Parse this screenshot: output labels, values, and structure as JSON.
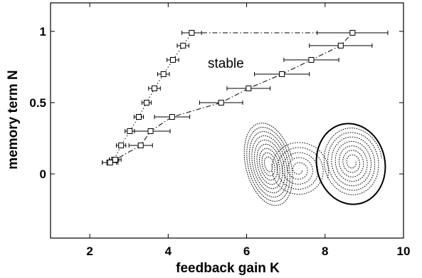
{
  "chart_data": {
    "type": "scatter",
    "xlabel": "feedback gain K",
    "ylabel": "memory term N",
    "xlim": [
      1,
      10
    ],
    "ylim": [
      -0.45,
      1.2
    ],
    "xticks": [
      2,
      4,
      6,
      8,
      10
    ],
    "xtick_labels": [
      "2",
      "4",
      "6",
      "8",
      "10"
    ],
    "yticks": [
      0,
      0.5,
      1
    ],
    "ytick_labels": [
      "0",
      "0.5",
      "1"
    ],
    "grid": false,
    "legend": "none",
    "annotation": "stable",
    "series": [
      {
        "line_style": "dotted",
        "x": [
          2.5,
          2.62,
          2.8,
          3.02,
          3.25,
          3.45,
          3.65,
          3.88,
          4.12,
          4.38,
          4.6
        ],
        "y": [
          0.08,
          0.1,
          0.2,
          0.3,
          0.4,
          0.5,
          0.6,
          0.7,
          0.8,
          0.9,
          0.99
        ],
        "xerr": [
          0.18,
          0.12,
          0.12,
          0.12,
          0.12,
          0.12,
          0.15,
          0.15,
          0.15,
          0.15,
          0.25
        ]
      },
      {
        "line_style": "dash-dot",
        "x": [
          2.52,
          2.65,
          3.3,
          3.55,
          4.1,
          5.35,
          6.05,
          6.9,
          7.65,
          8.4,
          8.7
        ],
        "y": [
          0.08,
          0.1,
          0.2,
          0.3,
          0.4,
          0.5,
          0.6,
          0.7,
          0.8,
          0.9,
          0.99
        ],
        "xerr": [
          0.2,
          0.15,
          0.3,
          0.5,
          0.45,
          0.55,
          0.55,
          0.7,
          0.7,
          0.8,
          0.9
        ]
      }
    ],
    "connector": {
      "line_style": "dash-dot",
      "x": [
        4.6,
        8.7
      ],
      "y": [
        0.99,
        0.99
      ]
    },
    "colors": {
      "foreground": "#000000",
      "background": "#ffffff"
    }
  }
}
